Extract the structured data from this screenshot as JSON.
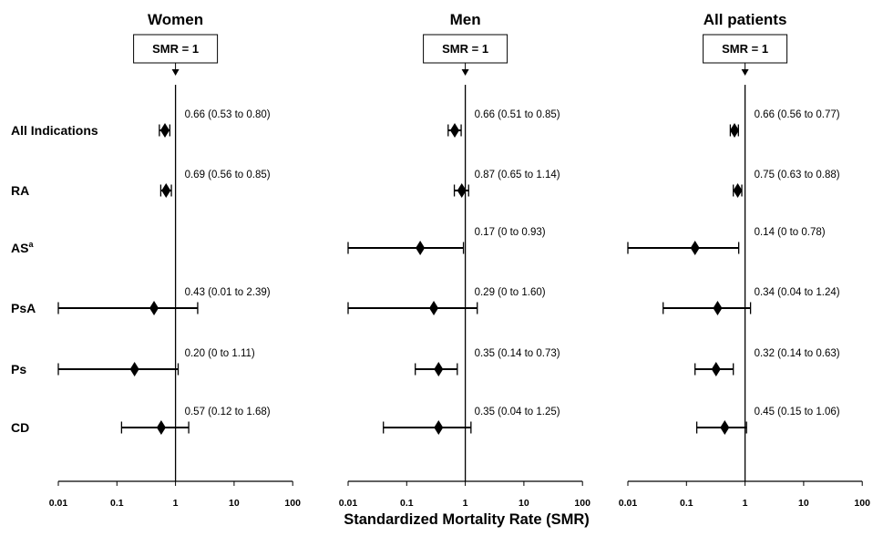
{
  "chart_data": [
    {
      "type": "forest",
      "title": "Women",
      "reference_label": "SMR = 1",
      "x_scale": "log",
      "xlim": [
        0.01,
        100
      ],
      "x_ticks": [
        "0.01",
        "0.1",
        "1",
        "10",
        "100"
      ],
      "rows": [
        {
          "category": "All Indications",
          "value": 0.66,
          "low": 0.53,
          "high": 0.8,
          "label": "0.66 (0.53 to 0.80)"
        },
        {
          "category": "RA",
          "value": 0.69,
          "low": 0.56,
          "high": 0.85,
          "label": "0.69 (0.56 to 0.85)"
        },
        {
          "category": "AS",
          "category_sup": "a",
          "value": null,
          "low": null,
          "high": null,
          "label": ""
        },
        {
          "category": "PsA",
          "value": 0.43,
          "low": 0.01,
          "high": 2.39,
          "label": "0.43 (0.01 to 2.39)"
        },
        {
          "category": "Ps",
          "value": 0.2,
          "low": 0.0,
          "high": 1.11,
          "label": "0.20 (0 to 1.11)"
        },
        {
          "category": "CD",
          "value": 0.57,
          "low": 0.12,
          "high": 1.68,
          "label": "0.57 (0.12 to 1.68)"
        }
      ]
    },
    {
      "type": "forest",
      "title": "Men",
      "reference_label": "SMR = 1",
      "x_scale": "log",
      "xlim": [
        0.01,
        100
      ],
      "x_ticks": [
        "0.01",
        "0.1",
        "1",
        "10",
        "100"
      ],
      "rows": [
        {
          "category": "All Indications",
          "value": 0.66,
          "low": 0.51,
          "high": 0.85,
          "label": "0.66 (0.51 to 0.85)"
        },
        {
          "category": "RA",
          "value": 0.87,
          "low": 0.65,
          "high": 1.14,
          "label": "0.87 (0.65 to 1.14)"
        },
        {
          "category": "AS",
          "category_sup": "a",
          "value": 0.17,
          "low": 0.0,
          "high": 0.93,
          "label": "0.17 (0 to 0.93)"
        },
        {
          "category": "PsA",
          "value": 0.29,
          "low": 0.0,
          "high": 1.6,
          "label": "0.29 (0 to 1.60)"
        },
        {
          "category": "Ps",
          "value": 0.35,
          "low": 0.14,
          "high": 0.73,
          "label": "0.35 (0.14 to 0.73)"
        },
        {
          "category": "CD",
          "value": 0.35,
          "low": 0.04,
          "high": 1.25,
          "label": "0.35 (0.04 to 1.25)"
        }
      ]
    },
    {
      "type": "forest",
      "title": "All patients",
      "reference_label": "SMR = 1",
      "x_scale": "log",
      "xlim": [
        0.01,
        100
      ],
      "x_ticks": [
        "0.01",
        "0.1",
        "1",
        "10",
        "100"
      ],
      "rows": [
        {
          "category": "All Indications",
          "value": 0.66,
          "low": 0.56,
          "high": 0.77,
          "label": "0.66 (0.56 to 0.77)"
        },
        {
          "category": "RA",
          "value": 0.75,
          "low": 0.63,
          "high": 0.88,
          "label": "0.75 (0.63 to 0.88)"
        },
        {
          "category": "AS",
          "category_sup": "a",
          "value": 0.14,
          "low": 0.0,
          "high": 0.78,
          "label": "0.14 (0 to 0.78)"
        },
        {
          "category": "PsA",
          "value": 0.34,
          "low": 0.04,
          "high": 1.24,
          "label": "0.34 (0.04 to 1.24)"
        },
        {
          "category": "Ps",
          "value": 0.32,
          "low": 0.14,
          "high": 0.63,
          "label": "0.32 (0.14 to 0.63)"
        },
        {
          "category": "CD",
          "value": 0.45,
          "low": 0.15,
          "high": 1.06,
          "label": "0.45 (0.15 to 1.06)"
        }
      ]
    }
  ],
  "xlabel": "Standardized Mortality Rate (SMR)"
}
